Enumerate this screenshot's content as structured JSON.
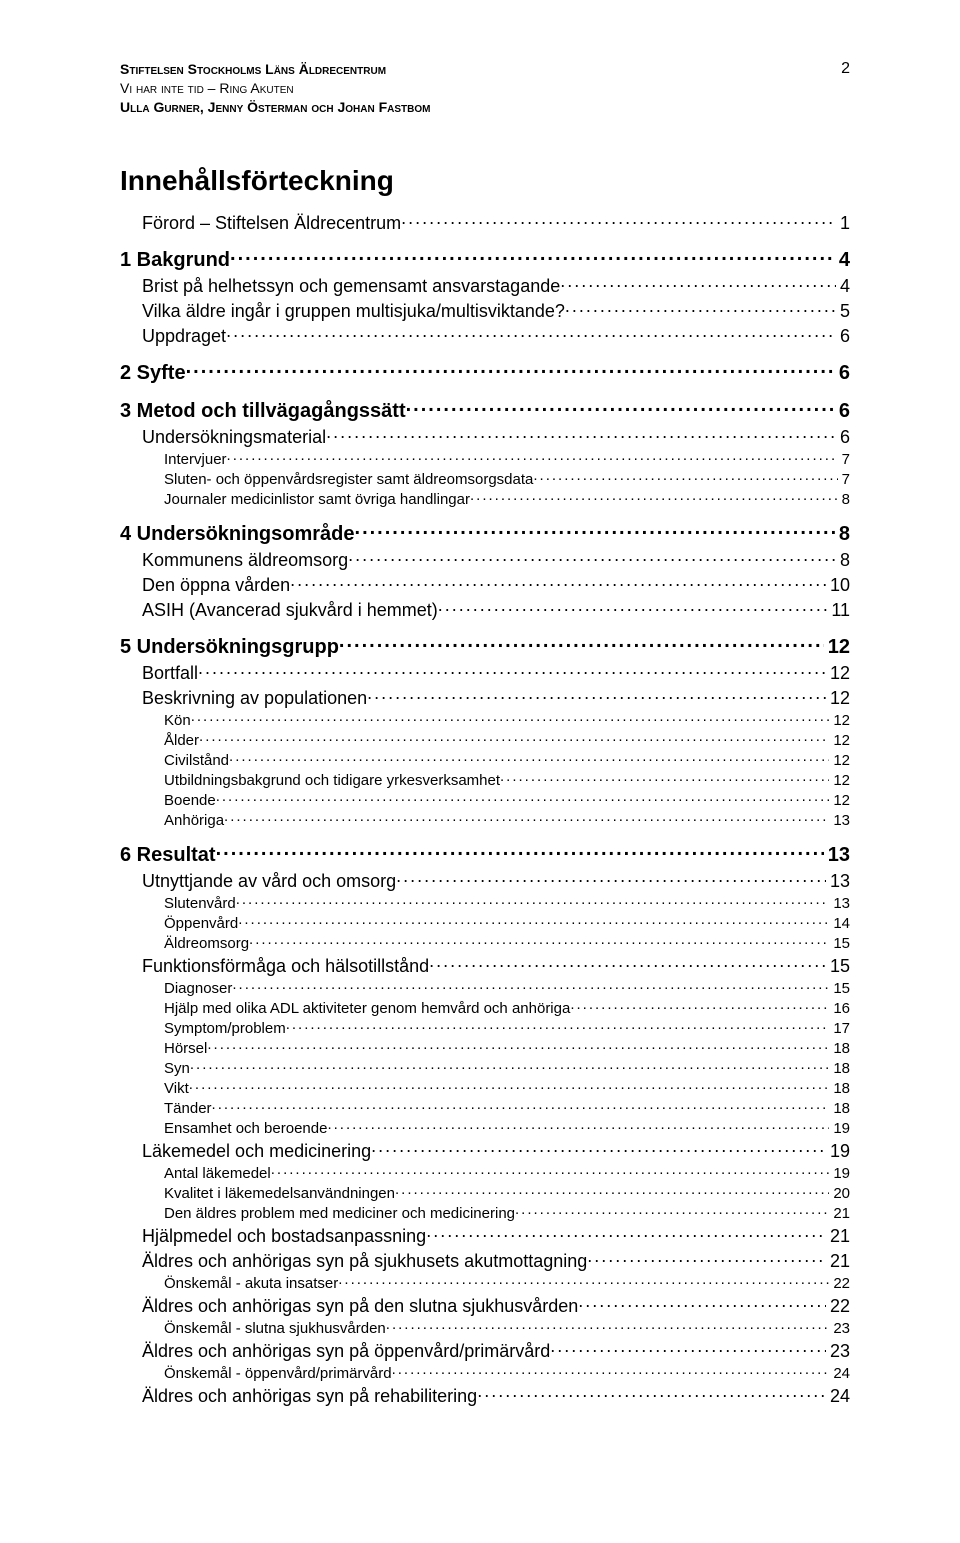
{
  "page_number": "2",
  "header": {
    "line1": "Stiftelsen Stockholms Läns Äldrecentrum",
    "line2": "Vi har inte tid – Ring Akuten",
    "line3": "Ulla Gurner, Jenny Österman och Johan Fastbom"
  },
  "title": "Innehållsförteckning",
  "toc": [
    {
      "level": 2,
      "first": true,
      "label": "Förord – Stiftelsen Äldrecentrum",
      "page": "1"
    },
    {
      "level": 1,
      "label": "1 Bakgrund",
      "page": "4"
    },
    {
      "level": 2,
      "label": "Brist på helhetssyn och gemensamt ansvarstagande",
      "page": "4"
    },
    {
      "level": 2,
      "label": "Vilka äldre ingår i gruppen multisjuka/multisviktande?",
      "page": "5"
    },
    {
      "level": 2,
      "label": "Uppdraget",
      "page": "6"
    },
    {
      "level": 1,
      "label": "2 Syfte",
      "page": "6"
    },
    {
      "level": 1,
      "label": "3 Metod och tillvägagångssätt",
      "page": "6"
    },
    {
      "level": 2,
      "label": "Undersökningsmaterial",
      "page": "6"
    },
    {
      "level": 3,
      "label": "Intervjuer",
      "page": "7"
    },
    {
      "level": 3,
      "label": "Sluten- och öppenvårdsregister samt äldreomsorgsdata",
      "page": "7"
    },
    {
      "level": 3,
      "label": "Journaler medicinlistor samt övriga handlingar",
      "page": "8"
    },
    {
      "level": 1,
      "label": "4 Undersökningsområde",
      "page": "8"
    },
    {
      "level": 2,
      "label": "Kommunens äldreomsorg",
      "page": "8"
    },
    {
      "level": 2,
      "label": "Den öppna vården",
      "page": "10"
    },
    {
      "level": 2,
      "label": "ASIH (Avancerad sjukvård i hemmet)",
      "page": "11"
    },
    {
      "level": 1,
      "label": "5 Undersökningsgrupp",
      "page": "12"
    },
    {
      "level": 2,
      "label": "Bortfall",
      "page": "12"
    },
    {
      "level": 2,
      "label": "Beskrivning av populationen",
      "page": "12"
    },
    {
      "level": 3,
      "label": "Kön",
      "page": "12"
    },
    {
      "level": 3,
      "label": "Ålder",
      "page": "12"
    },
    {
      "level": 3,
      "label": "Civilstånd",
      "page": "12"
    },
    {
      "level": 3,
      "label": "Utbildningsbakgrund och tidigare yrkesverksamhet",
      "page": "12"
    },
    {
      "level": 3,
      "label": "Boende",
      "page": "12"
    },
    {
      "level": 3,
      "label": "Anhöriga",
      "page": "13"
    },
    {
      "level": 1,
      "label": "6 Resultat",
      "page": "13"
    },
    {
      "level": 2,
      "label": "Utnyttjande av vård och omsorg",
      "page": "13"
    },
    {
      "level": 3,
      "label": "Slutenvård",
      "page": "13"
    },
    {
      "level": 3,
      "label": "Öppenvård",
      "page": "14"
    },
    {
      "level": 3,
      "label": "Äldreomsorg",
      "page": "15"
    },
    {
      "level": 2,
      "label": "Funktionsförmåga och hälsotillstånd",
      "page": "15"
    },
    {
      "level": 3,
      "label": "Diagnoser",
      "page": "15"
    },
    {
      "level": 3,
      "label": "Hjälp med olika ADL aktiviteter genom hemvård och anhöriga",
      "page": "16"
    },
    {
      "level": 3,
      "label": "Symptom/problem",
      "page": "17"
    },
    {
      "level": 3,
      "label": "Hörsel",
      "page": "18"
    },
    {
      "level": 3,
      "label": "Syn",
      "page": "18"
    },
    {
      "level": 3,
      "label": "Vikt",
      "page": "18"
    },
    {
      "level": 3,
      "label": "Tänder",
      "page": "18"
    },
    {
      "level": 3,
      "label": "Ensamhet och beroende",
      "page": "19"
    },
    {
      "level": 2,
      "label": "Läkemedel och medicinering",
      "page": "19"
    },
    {
      "level": 3,
      "label": "Antal läkemedel",
      "page": "19"
    },
    {
      "level": 3,
      "label": "Kvalitet i läkemedelsanvändningen",
      "page": "20"
    },
    {
      "level": 3,
      "label": "Den äldres problem med mediciner och medicinering",
      "page": "21"
    },
    {
      "level": 2,
      "label": "Hjälpmedel och bostadsanpassning",
      "page": "21"
    },
    {
      "level": 2,
      "label": "Äldres och anhörigas syn på sjukhusets akutmottagning",
      "page": "21"
    },
    {
      "level": 3,
      "label": "Önskemål - akuta insatser",
      "page": "22"
    },
    {
      "level": 2,
      "label": "Äldres och anhörigas syn på den slutna sjukhusvården",
      "page": "22"
    },
    {
      "level": 3,
      "label": "Önskemål - slutna sjukhusvården",
      "page": "23"
    },
    {
      "level": 2,
      "label": "Äldres och anhörigas syn på öppenvård/primärvård",
      "page": "23"
    },
    {
      "level": 3,
      "label": "Önskemål - öppenvård/primärvård",
      "page": "24"
    },
    {
      "level": 2,
      "label": "Äldres och anhörigas syn på rehabilitering",
      "page": "24"
    }
  ]
}
